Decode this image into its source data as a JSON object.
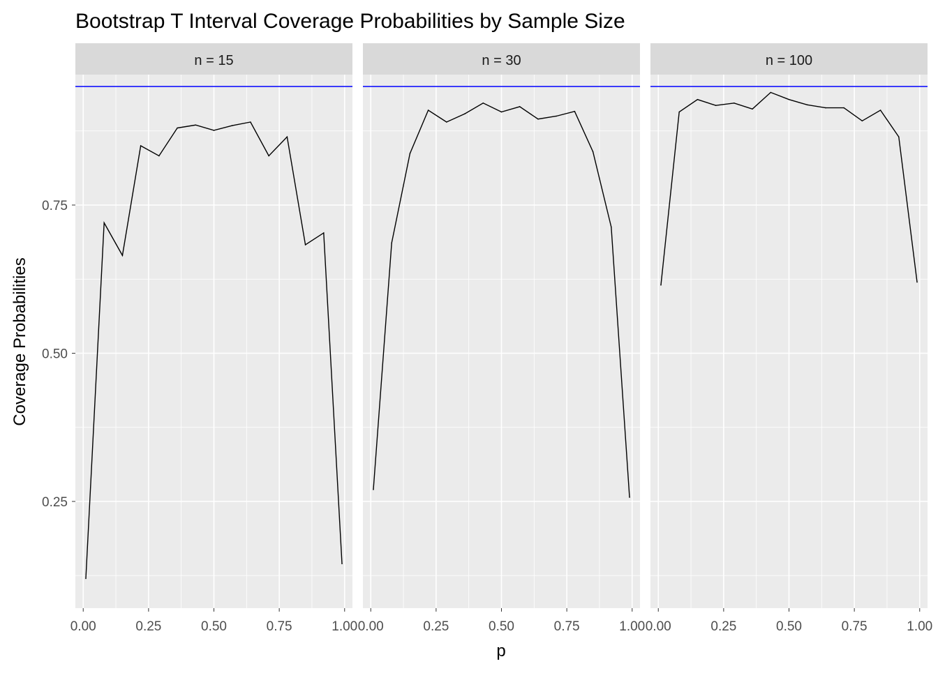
{
  "chart_data": {
    "type": "line",
    "title": "Bootstrap T Interval Coverage Probabilities by Sample Size",
    "xlabel": "p",
    "ylabel": "Coverage Probabilities",
    "xlim": [
      -0.03,
      1.03
    ],
    "ylim": [
      0.07,
      0.97
    ],
    "x_ticks": [
      0,
      0.25,
      0.5,
      0.75,
      1
    ],
    "x_tick_labels": [
      "0.00",
      "0.25",
      "0.50",
      "0.75",
      "1.00"
    ],
    "y_ticks": [
      0.25,
      0.5,
      0.75
    ],
    "y_tick_labels": [
      "0.25",
      "0.50",
      "0.75"
    ],
    "grid": true,
    "reference_line": {
      "y": 0.95,
      "color": "#0000ff"
    },
    "line_color": "#000000",
    "panel_background": "#ebebeb",
    "strip_background": "#d9d9d9",
    "facets": [
      {
        "label": "n = 15",
        "x": [
          0.01,
          0.08,
          0.15,
          0.22,
          0.29,
          0.36,
          0.43,
          0.5,
          0.57,
          0.64,
          0.71,
          0.78,
          0.85,
          0.92,
          0.99
        ],
        "y": [
          0.12,
          0.72,
          0.665,
          0.85,
          0.833,
          0.88,
          0.885,
          0.876,
          0.884,
          0.89,
          0.833,
          0.865,
          0.683,
          0.703,
          0.145
        ]
      },
      {
        "label": "n = 30",
        "x": [
          0.01,
          0.08,
          0.15,
          0.22,
          0.29,
          0.36,
          0.43,
          0.5,
          0.57,
          0.64,
          0.71,
          0.78,
          0.85,
          0.92,
          0.99
        ],
        "y": [
          0.27,
          0.686,
          0.837,
          0.91,
          0.89,
          0.904,
          0.922,
          0.907,
          0.916,
          0.895,
          0.9,
          0.908,
          0.84,
          0.713,
          0.257
        ]
      },
      {
        "label": "n = 100",
        "x": [
          0.01,
          0.08,
          0.15,
          0.22,
          0.29,
          0.36,
          0.43,
          0.5,
          0.57,
          0.64,
          0.71,
          0.78,
          0.85,
          0.92,
          0.99
        ],
        "y": [
          0.615,
          0.907,
          0.928,
          0.918,
          0.922,
          0.912,
          0.94,
          0.928,
          0.919,
          0.914,
          0.914,
          0.892,
          0.91,
          0.865,
          0.62
        ]
      }
    ]
  }
}
